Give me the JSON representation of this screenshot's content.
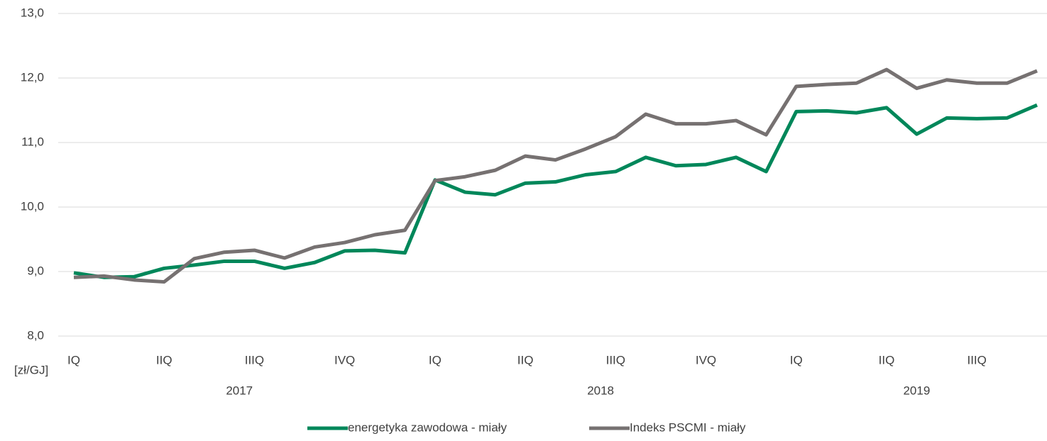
{
  "chart_data": {
    "type": "line",
    "y_unit_label": "[zł/GJ]",
    "categories": [
      "IQ",
      null,
      null,
      "IIQ",
      null,
      null,
      "IIIQ",
      null,
      null,
      "IVQ",
      null,
      null,
      "IQ",
      null,
      null,
      "IIQ",
      null,
      null,
      "IIIQ",
      null,
      null,
      "IVQ",
      null,
      null,
      "IQ",
      null,
      null,
      "IIQ",
      null,
      null,
      "IIIQ",
      null,
      null
    ],
    "year_groups": [
      {
        "label": "2017",
        "count": 12
      },
      {
        "label": "2018",
        "count": 12
      },
      {
        "label": "2019",
        "count": 9
      }
    ],
    "series": [
      {
        "name": "energetyka zawodowa - miały",
        "color": "#00875a",
        "values": [
          8.98,
          8.91,
          8.92,
          9.05,
          9.1,
          9.16,
          9.16,
          9.05,
          9.14,
          9.32,
          9.33,
          9.29,
          10.42,
          10.23,
          10.19,
          10.37,
          10.39,
          10.5,
          10.55,
          10.77,
          10.64,
          10.66,
          10.77,
          10.55,
          11.48,
          11.49,
          11.46,
          11.54,
          11.13,
          11.38,
          11.37,
          11.38,
          11.58
        ]
      },
      {
        "name": "Indeks PSCMI - miały",
        "color": "#767171",
        "values": [
          8.91,
          8.93,
          8.87,
          8.84,
          9.2,
          9.3,
          9.33,
          9.21,
          9.38,
          9.45,
          9.57,
          9.64,
          10.41,
          10.47,
          10.57,
          10.79,
          10.73,
          10.9,
          11.09,
          11.44,
          11.29,
          11.29,
          11.34,
          11.12,
          11.87,
          11.9,
          11.92,
          12.13,
          11.84,
          11.97,
          11.92,
          11.92,
          12.11
        ]
      }
    ],
    "ylim": [
      8,
      13
    ],
    "yticks": [
      {
        "value": 8,
        "label": "8,0"
      },
      {
        "value": 9,
        "label": "9,0"
      },
      {
        "value": 10,
        "label": "10,0"
      },
      {
        "value": 11,
        "label": "11,0"
      },
      {
        "value": 12,
        "label": "12,0"
      },
      {
        "value": 13,
        "label": "13,0"
      }
    ],
    "grid": true,
    "legend": "bottom"
  }
}
